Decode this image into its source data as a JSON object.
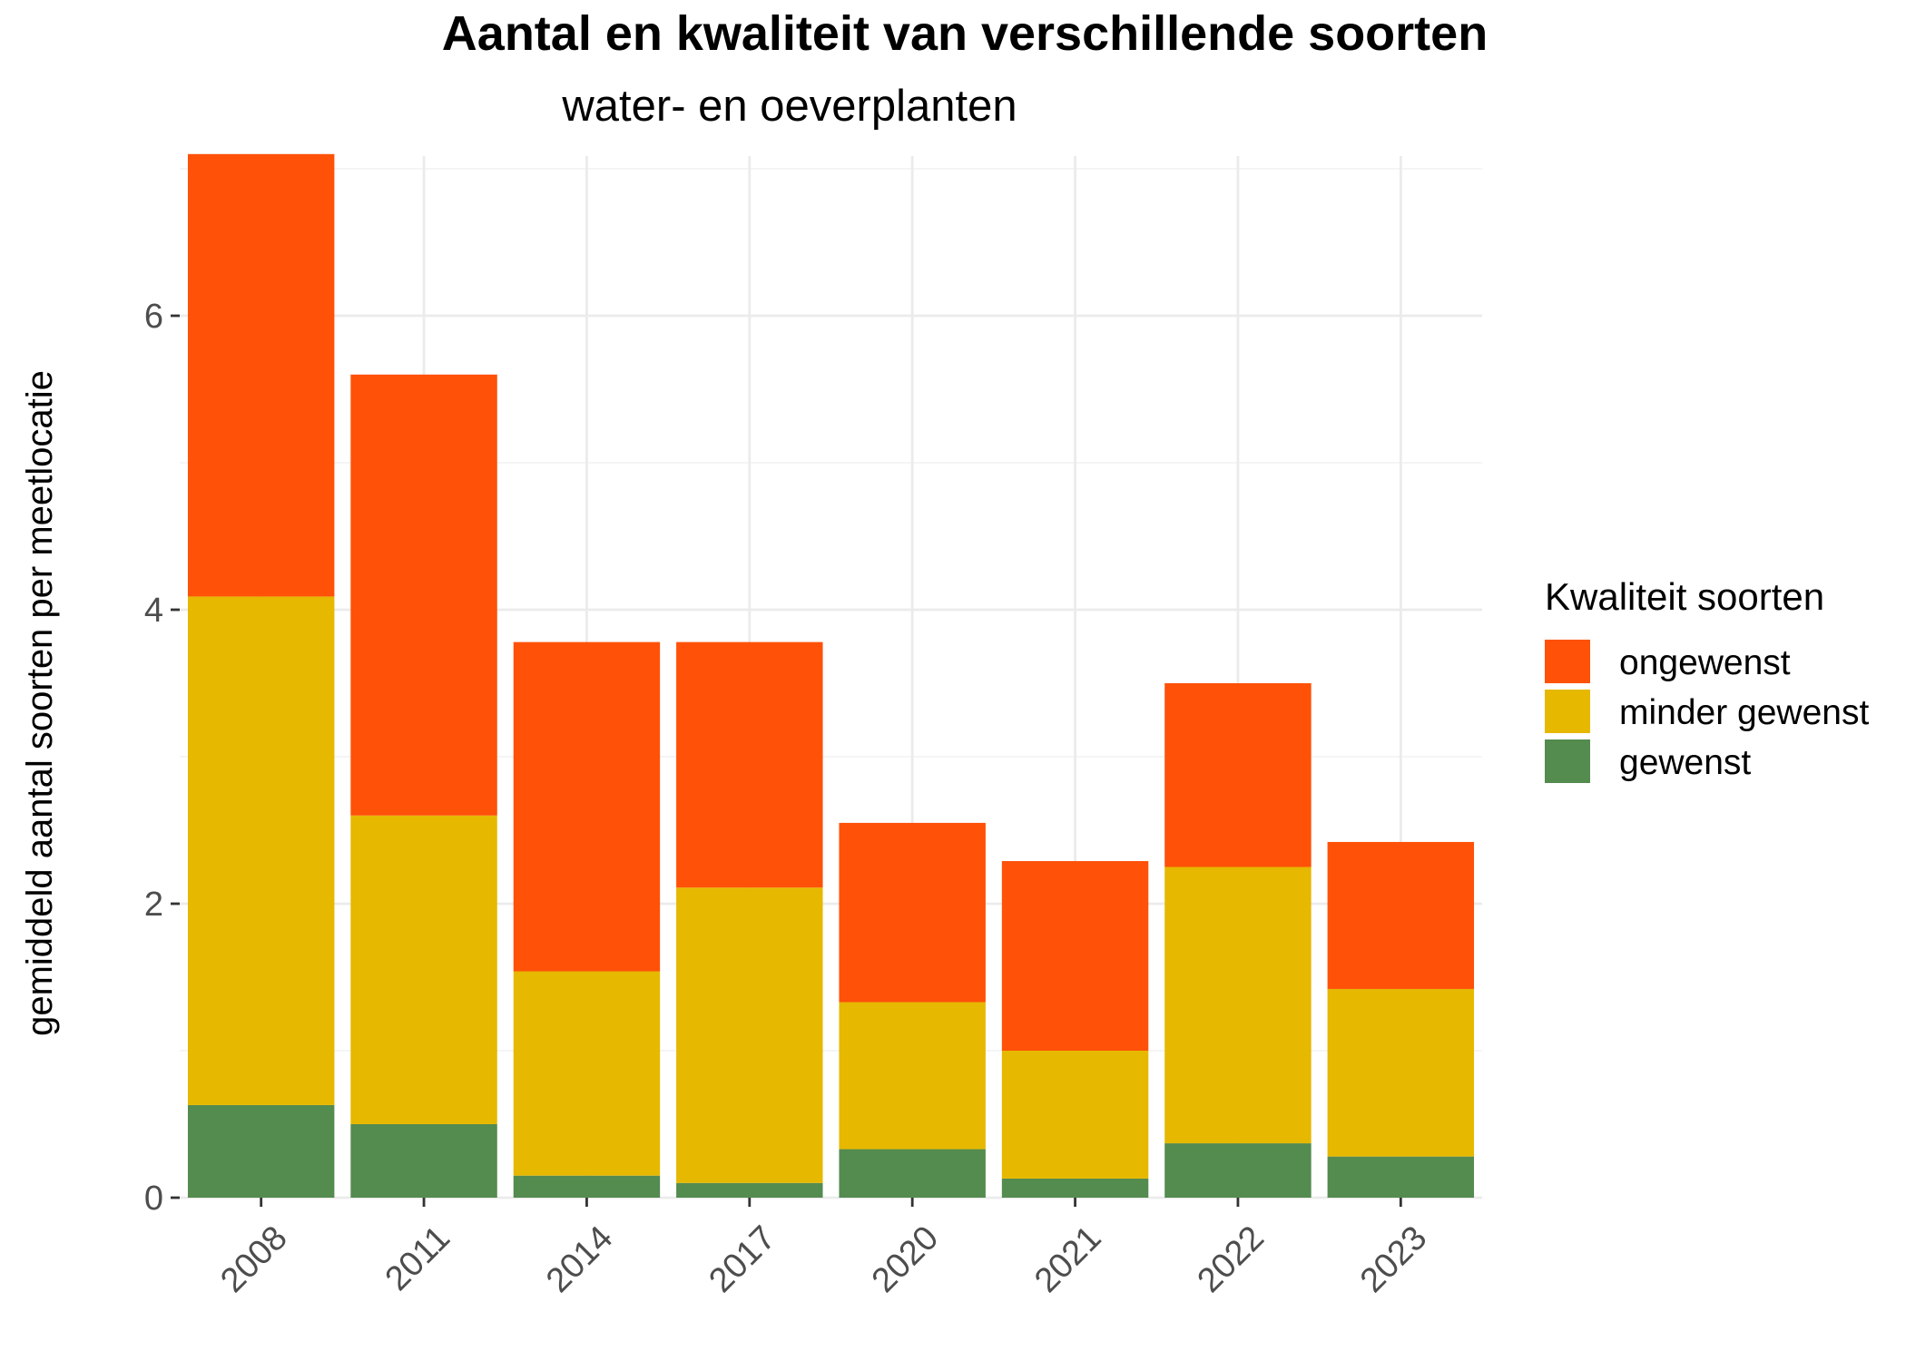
{
  "chart_data": {
    "type": "bar",
    "stacked": true,
    "title": "Aantal en kwaliteit van verschillende soorten",
    "subtitle": "water- en oeverplanten",
    "xlabel": "",
    "ylabel": "gemiddeld aantal soorten per meetlocatie",
    "categories": [
      "2008",
      "2011",
      "2014",
      "2017",
      "2020",
      "2021",
      "2022",
      "2023"
    ],
    "ylim": [
      0,
      7.1
    ],
    "yticks": [
      0,
      2,
      4,
      6
    ],
    "ytick_labels": [
      "0",
      "2",
      "4",
      "6"
    ],
    "grid": true,
    "legend": {
      "title": "Kwaliteit soorten",
      "position": "right"
    },
    "series": [
      {
        "name": "gewenst",
        "color": "#548b4f",
        "values": [
          0.63,
          0.5,
          0.15,
          0.1,
          0.33,
          0.13,
          0.37,
          0.28
        ]
      },
      {
        "name": "minder gewenst",
        "color": "#e6b800",
        "values": [
          3.46,
          2.1,
          1.39,
          2.01,
          1.0,
          0.87,
          1.88,
          1.14
        ]
      },
      {
        "name": "ongewenst",
        "color": "#ff5108",
        "values": [
          3.01,
          3.0,
          2.24,
          1.67,
          1.22,
          1.29,
          1.25,
          1.0
        ]
      }
    ],
    "legend_order": [
      "ongewenst",
      "minder gewenst",
      "gewenst"
    ]
  }
}
